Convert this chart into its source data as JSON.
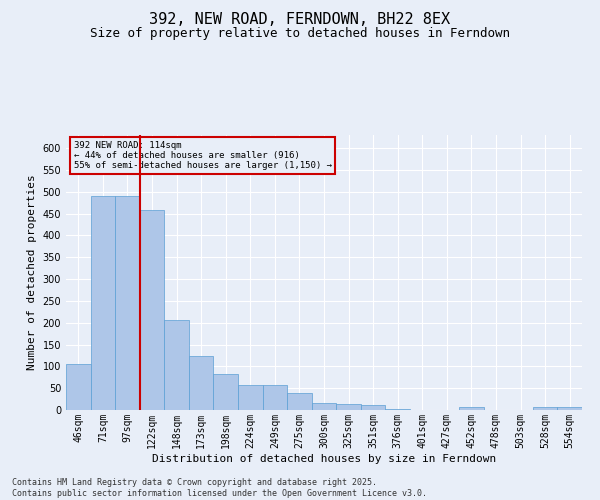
{
  "title": "392, NEW ROAD, FERNDOWN, BH22 8EX",
  "subtitle": "Size of property relative to detached houses in Ferndown",
  "xlabel": "Distribution of detached houses by size in Ferndown",
  "ylabel": "Number of detached properties",
  "footer": "Contains HM Land Registry data © Crown copyright and database right 2025.\nContains public sector information licensed under the Open Government Licence v3.0.",
  "categories": [
    "46sqm",
    "71sqm",
    "97sqm",
    "122sqm",
    "148sqm",
    "173sqm",
    "198sqm",
    "224sqm",
    "249sqm",
    "275sqm",
    "300sqm",
    "325sqm",
    "351sqm",
    "376sqm",
    "401sqm",
    "427sqm",
    "452sqm",
    "478sqm",
    "503sqm",
    "528sqm",
    "554sqm"
  ],
  "values": [
    105,
    490,
    490,
    458,
    207,
    123,
    82,
    57,
    57,
    40,
    15,
    13,
    12,
    3,
    0,
    0,
    6,
    0,
    0,
    7,
    6
  ],
  "bar_color": "#aec6e8",
  "bar_edge_color": "#5a9fd4",
  "vline_x": 2.5,
  "vline_color": "#cc0000",
  "annotation_text": "392 NEW ROAD: 114sqm\n← 44% of detached houses are smaller (916)\n55% of semi-detached houses are larger (1,150) →",
  "annotation_box_color": "#cc0000",
  "ylim": [
    0,
    630
  ],
  "yticks": [
    0,
    50,
    100,
    150,
    200,
    250,
    300,
    350,
    400,
    450,
    500,
    550,
    600
  ],
  "background_color": "#e8eef8",
  "grid_color": "#ffffff",
  "title_fontsize": 11,
  "subtitle_fontsize": 9,
  "label_fontsize": 8,
  "tick_fontsize": 7,
  "footer_fontsize": 6
}
